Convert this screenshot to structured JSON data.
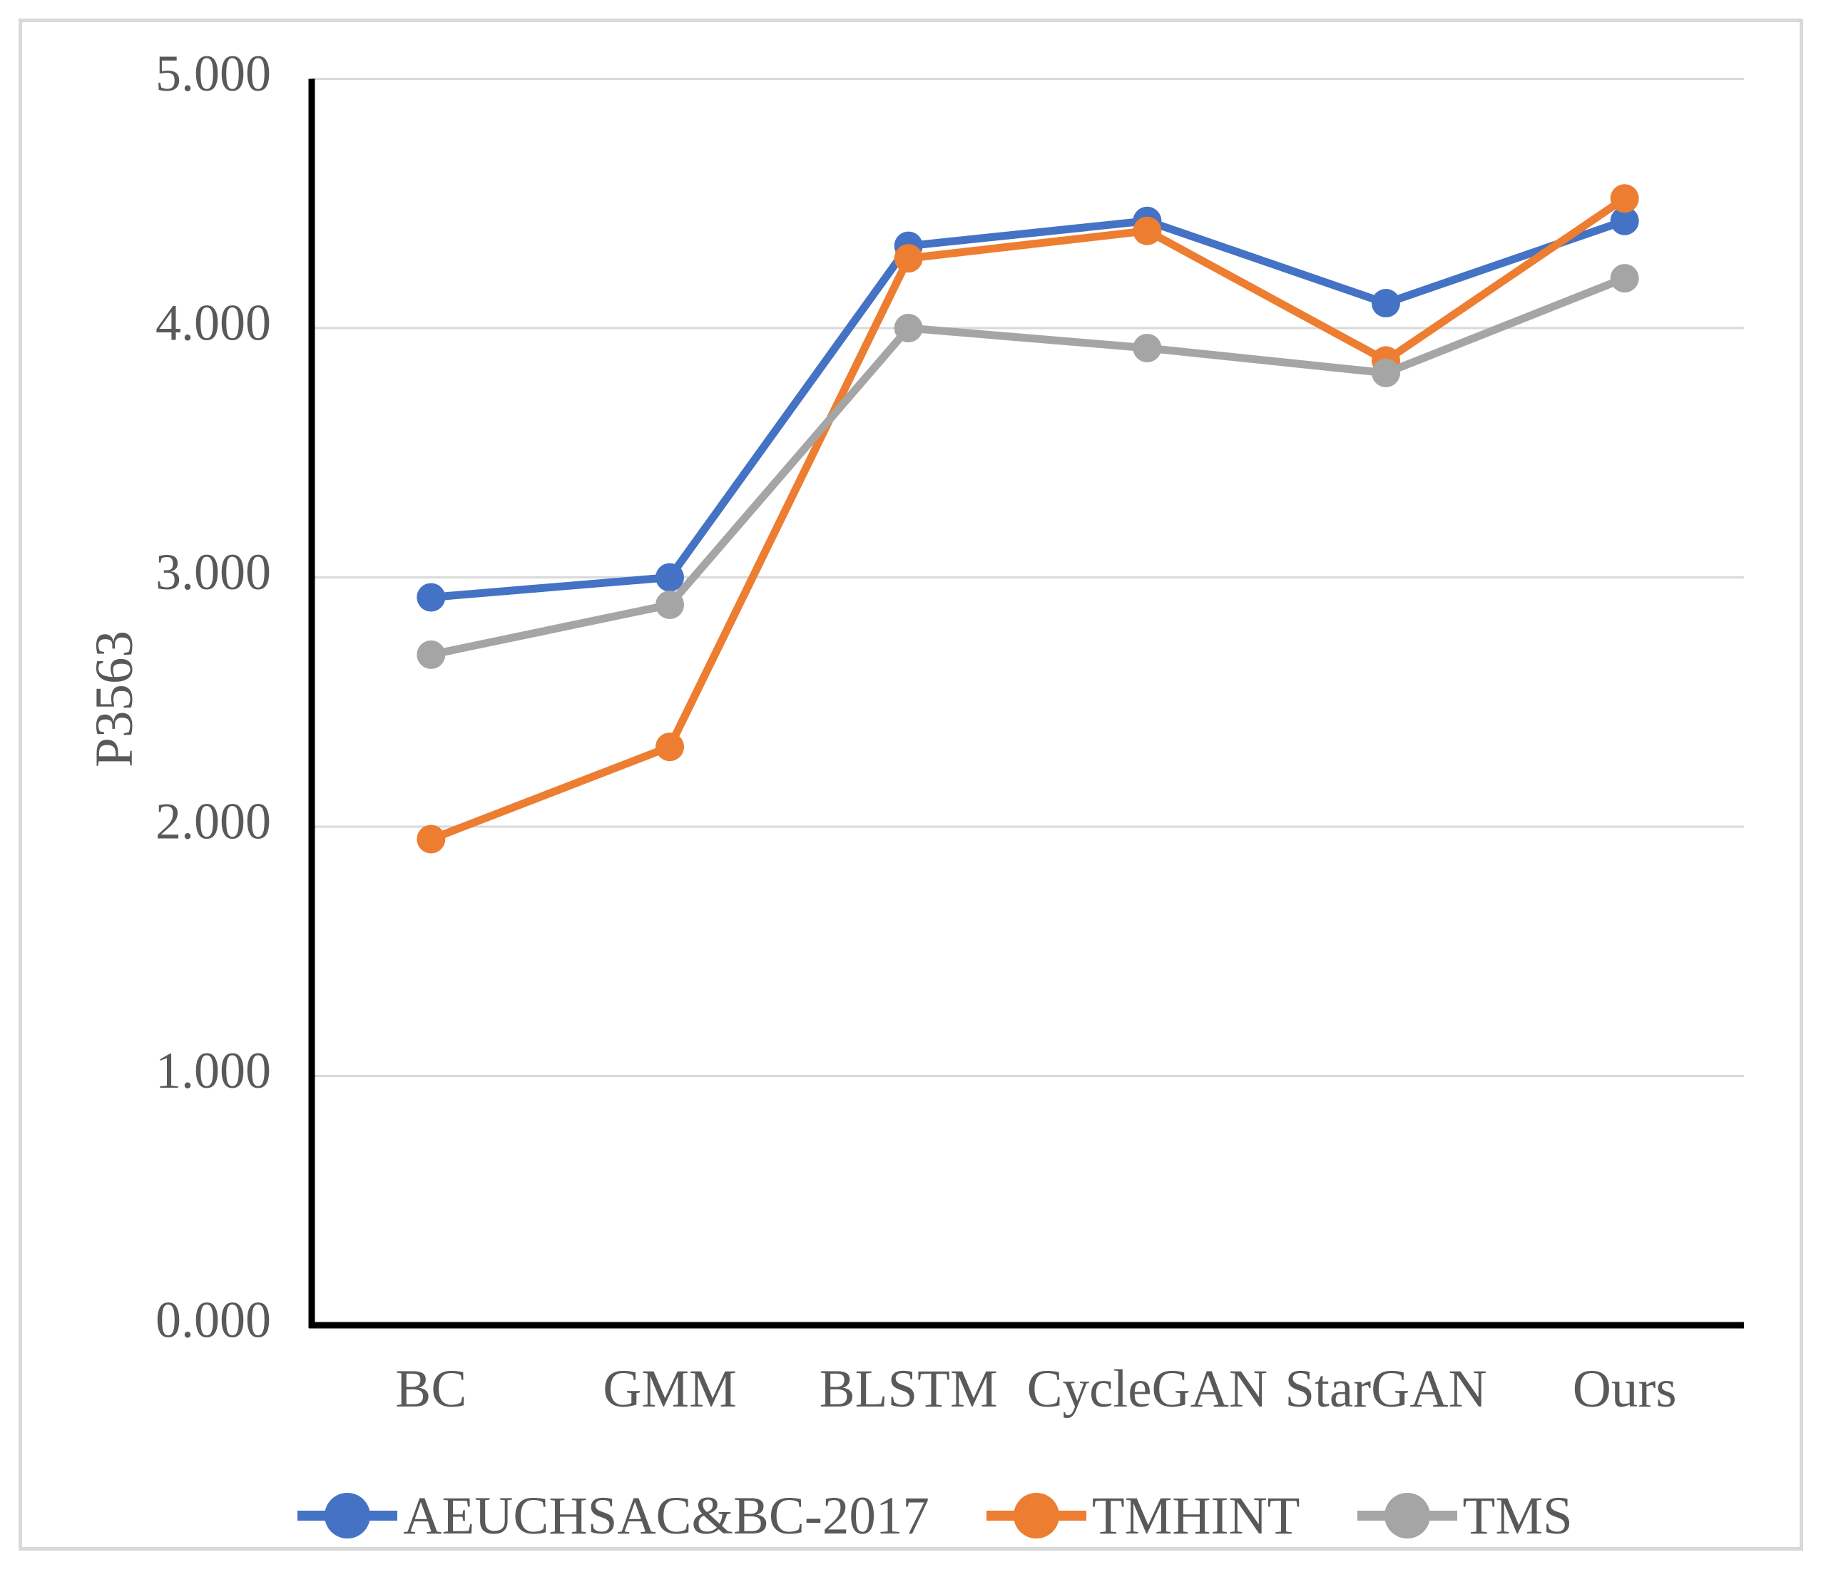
{
  "chart_data": {
    "type": "line",
    "title": "",
    "xlabel": "",
    "ylabel": "P3563",
    "categories": [
      "BC",
      "GMM",
      "BLSTM",
      "CycleGAN",
      "StarGAN",
      "Ours"
    ],
    "series": [
      {
        "name": "AEUCHSAC&BC-2017",
        "color": "#4472C4",
        "values": [
          2.92,
          3.0,
          4.33,
          4.43,
          4.1,
          4.43
        ]
      },
      {
        "name": "TMHINT",
        "color": "#ED7D31",
        "values": [
          1.95,
          2.32,
          4.28,
          4.39,
          3.87,
          4.52
        ]
      },
      {
        "name": "TMS",
        "color": "#A5A5A5",
        "values": [
          2.69,
          2.89,
          4.0,
          3.92,
          3.82,
          4.2
        ]
      }
    ],
    "ylim": [
      0,
      5
    ],
    "y_tick_step": 1,
    "y_tick_labels": [
      "0.000",
      "1.000",
      "2.000",
      "3.000",
      "4.000",
      "5.000"
    ],
    "grid": "horizontal",
    "legend_position": "bottom",
    "marker": "circle"
  },
  "style_colors": {
    "gridline": "#D9D9D9",
    "axis_line": "#000000",
    "text": "#595959",
    "figure_border": "#D9D9D9",
    "background": "#FFFFFF"
  }
}
